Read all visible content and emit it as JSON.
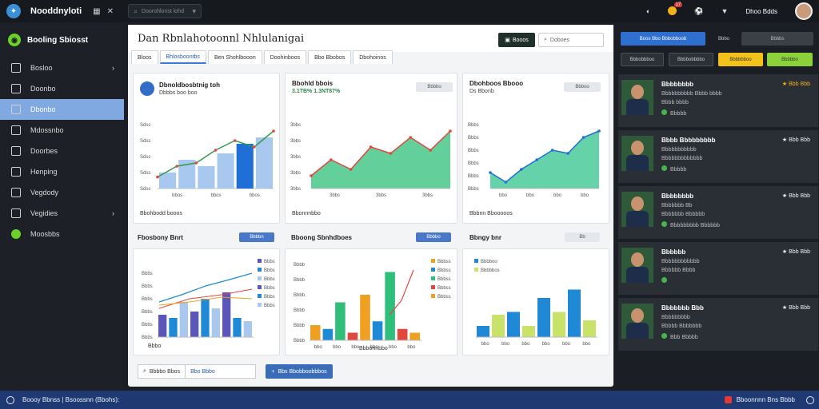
{
  "app": {
    "title": "Nooddnyloti",
    "logo_icon": "bird-icon"
  },
  "topbar": {
    "search_placeholder": "Doorohlonst lohd",
    "notification_count": "17",
    "user_name": "Dhoo Bdds"
  },
  "sidebar": {
    "brand": "Booling Sbiosst",
    "items": [
      {
        "label": "Bosloo",
        "icon": "home-icon",
        "has_chevron": true
      },
      {
        "label": "Doonbo",
        "icon": "folder-icon"
      },
      {
        "label": "Dbonbo",
        "icon": "chart-icon",
        "active": true
      },
      {
        "label": "Mdossnbo",
        "icon": "mail-icon"
      },
      {
        "label": "Doorbes",
        "icon": "document-icon"
      },
      {
        "label": "Henping",
        "icon": "calendar-icon"
      },
      {
        "label": "Vegdody",
        "icon": "users-icon"
      },
      {
        "label": "Vegidies",
        "icon": "settings-icon",
        "has_chevron": true
      },
      {
        "label": "Moosbbs",
        "icon": "green-dot-icon"
      }
    ]
  },
  "main": {
    "title": "Dan Rbnlahotoonnl Nhlulanigai",
    "action_button": "Booos",
    "search_placeholder": "Doboes",
    "tabs": [
      "Bloos",
      "Bhlosboontbs",
      "Ben Shohlbooon",
      "Doohinboos",
      "Bbo Bbobos",
      "Dbohoinos"
    ],
    "cards": {
      "c1": {
        "title": "Dbnoldbosbtnig toh",
        "subtitle": "Dbbbs boo boo",
        "yticks": [
          "Sdss",
          "Sdss",
          "Sdss",
          "Sdss",
          "Sdss"
        ],
        "xticks": [
          "bbos",
          "bbos",
          "bbos"
        ],
        "footer": "Bbohbodd booos"
      },
      "c2": {
        "title": "Bbohld bbois",
        "stat": "3.1TB%  1.3NT87%",
        "btn": "Bbbbo",
        "yticks": [
          "3bbs",
          "3bbs",
          "3bbs",
          "3bbs",
          "3bbs"
        ],
        "xticks": [
          "3bbs",
          "3bbs",
          "3bbs"
        ],
        "footer": "Bbonnnbbo",
        "legend": [
          "Bbs3",
          "Bbs"
        ]
      },
      "c3": {
        "title": "Dbohboos Bbooo",
        "subtitle": "Ds Bbonb",
        "btn": "Bbboo",
        "yticks": [
          "Bbbs",
          "Bbbs",
          "Bbbs",
          "Bbbs",
          "Bbbs",
          "Bbbs"
        ],
        "xticks": [
          "bbo",
          "bbo",
          "bbo",
          "bbo"
        ],
        "footer": "Bbbnn Bbooooos"
      },
      "c4": {
        "title": "Fbosbony Bnrt",
        "btn": "Bbbbn",
        "yticks": [
          "Bbbs",
          "Bbbs",
          "Bbbs",
          "Bbbs",
          "Bbbs",
          "Bbbs"
        ],
        "xticks": [
          "bbbs",
          "bbbs",
          "bbbs"
        ],
        "footer": "Bbbo",
        "legend": [
          "Bbbs",
          "Bbbs",
          "Bbbs",
          "Bbbs",
          "Bbbs",
          "Bbbs"
        ]
      },
      "c5": {
        "title": "Bboong Sbnhdboes",
        "btn": "Bbbbo",
        "yticks": [
          "Bbbb",
          "Bbbb",
          "Bbbb",
          "Bbbb",
          "Bbbb",
          "Bbbb"
        ],
        "xticks": [
          "bbo",
          "bbo",
          "bbo",
          "bbo",
          "bbo",
          "bbo"
        ],
        "footer": "Bbbonnbbo",
        "legend": [
          "Bbbss",
          "Bbbss",
          "Bbbss",
          "Bbbss",
          "Bbbss"
        ]
      },
      "c6": {
        "title": "Bbngy bnr",
        "btn": "Bb",
        "legend": [
          "Bbbboo",
          "Bbbbbos"
        ],
        "xticks": [
          "bbo",
          "bbo",
          "bbo",
          "bbo",
          "bbo",
          "bbo"
        ]
      }
    },
    "bottom_input": {
      "left": "Bbbbo Bbos",
      "right": "Bbo Bbbo"
    },
    "bottom_button": "Bbs Bbobboobbbos"
  },
  "right_panel": {
    "tool_primary": "Boos Bbo Bbbobboob",
    "tool_secondary": "Bbbo",
    "tool_dropdown": "Bbbbs",
    "filter_a": "Bbbobbboo",
    "filter_b": "Bbbbobbbbo",
    "filter_c": "Bbbbbboo",
    "filter_d": "Bbbbbo",
    "people": [
      {
        "name": "Bbbbbbbb",
        "line1": "Bbbbbbbbbb  Bbbb bbbb",
        "line2": "Bbbb bbbb",
        "line3": "Bbbbb",
        "rating": "★ Bbb Bbb",
        "rating_color": "#f2b21b"
      },
      {
        "name": "Bbbb Bbbbbbbbb",
        "line1": "Bbbbbbbbbbb",
        "line2": "Bbbbbbbbbbbbb",
        "line3": "Bbbbb",
        "rating": "★ Bbb Bbb",
        "rating_color": "#eeeeee"
      },
      {
        "name": "Bbbbbbbb",
        "line1": "Bbbbbbb Bb",
        "line2": "Bbbbbbb Bbbbbb",
        "line3": "Bbbbbbbbb Bbbbbb",
        "rating": "★ Bbb Bbb",
        "rating_color": "#eeeeee"
      },
      {
        "name": "Bbbbbb",
        "line1": "Bbbbbbbbbbbb",
        "line2": "Bbbbbb Bbbb",
        "line3": "",
        "rating": "★ Bbb Bbb",
        "rating_color": "#eeeeee"
      },
      {
        "name": "Bbbbbbb Bbb",
        "line1": "Bbbbbbbbb",
        "line2": "Bbbbb Bbbbbbb",
        "line3": "Bbb Bbbbb",
        "rating": "★ Bbb Bbb",
        "rating_color": "#eeeeee"
      }
    ]
  },
  "statusbar": {
    "left": "Boooy Bbnss | Bsoossnn (Bbohs):",
    "right": "Bboonnnn Bns Bbbb"
  },
  "chart_data": [
    {
      "type": "bar",
      "name": "c1",
      "bars": [
        0.25,
        0.45,
        0.35,
        0.55,
        0.7,
        0.8
      ],
      "line": [
        0.18,
        0.35,
        0.4,
        0.6,
        0.75,
        0.65,
        0.9
      ],
      "colors": [
        "#a9c8ef",
        "#1f6fd6",
        "#2e9c4a",
        "#e2473d"
      ]
    },
    {
      "type": "area",
      "name": "c2",
      "values": [
        0.2,
        0.45,
        0.3,
        0.65,
        0.55,
        0.8,
        0.6,
        0.9
      ],
      "colors": [
        "#2fbf7a",
        "#e2473d"
      ]
    },
    {
      "type": "area",
      "name": "c3",
      "values": [
        0.25,
        0.1,
        0.3,
        0.45,
        0.6,
        0.55,
        0.8,
        0.9
      ],
      "colors": [
        "#31c38c",
        "#1f6fd6"
      ]
    },
    {
      "type": "bar",
      "name": "c4",
      "bars": [
        0.35,
        0.3,
        0.55,
        0.4,
        0.6,
        0.45,
        0.7,
        0.3,
        0.25
      ],
      "colors": [
        "#5b57b8",
        "#1f89d6",
        "#a9c8ef"
      ]
    },
    {
      "type": "bar",
      "name": "c5",
      "bars": [
        0.2,
        0.15,
        0.5,
        0.1,
        0.6,
        0.25,
        0.9,
        0.15,
        0.1
      ],
      "colors": [
        "#f0a020",
        "#1f89d6",
        "#2fbf7a",
        "#e2473d"
      ]
    },
    {
      "type": "bar",
      "name": "c6",
      "bars": [
        0.2,
        0.4,
        0.45,
        0.2,
        0.7,
        0.45,
        0.85,
        0.3
      ],
      "colors": [
        "#1f89d6",
        "#c9e36a"
      ]
    }
  ]
}
